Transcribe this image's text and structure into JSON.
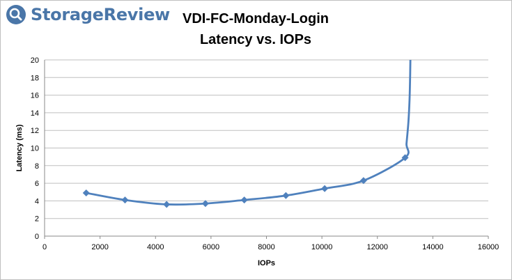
{
  "brand": {
    "name": "StorageReview",
    "icon": "search-magnifier-icon",
    "color": "#4a76a8"
  },
  "chart_data": {
    "type": "line",
    "title": "VDI-FC-Monday-Login",
    "subtitle": "Latency vs. IOPs",
    "xlabel": "IOPs",
    "ylabel": "Latency (ms)",
    "xlim": [
      0,
      16000
    ],
    "ylim": [
      0,
      20
    ],
    "x_ticks": [
      0,
      2000,
      4000,
      6000,
      8000,
      10000,
      12000,
      14000,
      16000
    ],
    "y_ticks": [
      0,
      2,
      4,
      6,
      8,
      10,
      12,
      14,
      16,
      18,
      20
    ],
    "grid": "horizontal",
    "line_color": "#4f81bd",
    "marker": "diamond",
    "series": [
      {
        "x": [
          1500,
          2900,
          4400,
          5800,
          7200,
          8700,
          10100,
          11500,
          13000
        ],
        "y": [
          4.9,
          4.1,
          3.6,
          3.7,
          4.1,
          4.6,
          5.4,
          6.3,
          8.9
        ]
      }
    ],
    "tail": {
      "x": [
        13050,
        13120,
        13160,
        13180,
        13190
      ],
      "y": [
        10.5,
        13,
        15.5,
        18,
        20
      ]
    }
  }
}
